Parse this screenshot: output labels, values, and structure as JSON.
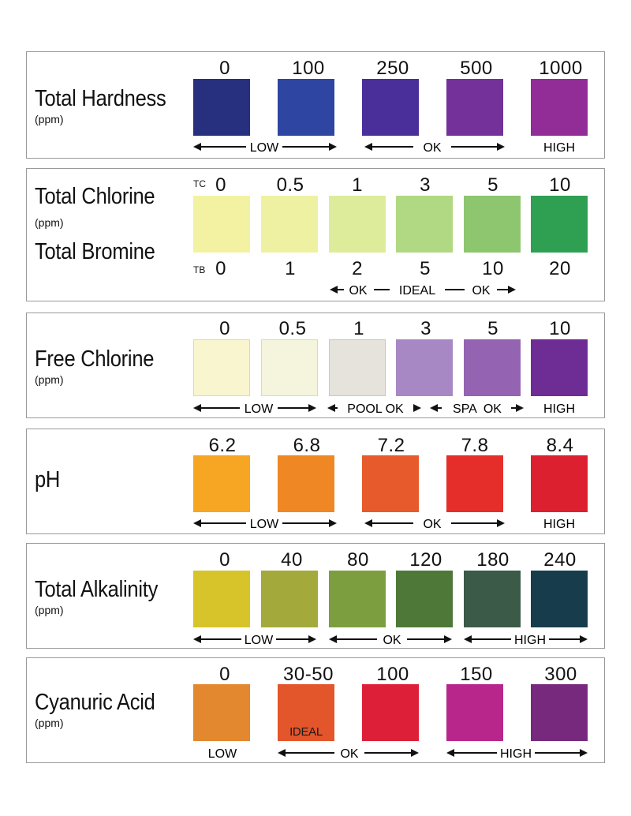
{
  "panels": [
    {
      "id": "total-hardness",
      "title": "Total Hardness",
      "unit": "(ppm)",
      "values": [
        "0",
        "100",
        "250",
        "500",
        "1000"
      ],
      "colors": [
        "#26307f",
        "#2e45a1",
        "#4a2f9a",
        "#74319a",
        "#922c96"
      ],
      "ranges": [
        {
          "label": "LOW",
          "type": "both",
          "from": 0,
          "to": 1
        },
        {
          "label": "OK",
          "type": "both",
          "from": 2,
          "to": 3
        },
        {
          "label": "HIGH",
          "type": "none",
          "from": 4,
          "to": 4
        }
      ]
    },
    {
      "id": "total-chlorine-bromine",
      "title": "Total Chlorine",
      "unit": "(ppm)",
      "title2": "Total Bromine",
      "prefix_top": "TC",
      "prefix_bottom": "TB",
      "values": [
        "0",
        "0.5",
        "1",
        "3",
        "5",
        "10"
      ],
      "values_bottom": [
        "0",
        "1",
        "2",
        "5",
        "10",
        "20"
      ],
      "colors": [
        "#f3f2a2",
        "#eef1a2",
        "#dcec9b",
        "#b1d983",
        "#8dc66f",
        "#2f9f52"
      ],
      "ranges_text": {
        "ok_left": "OK",
        "ideal": "IDEAL",
        "ok_right": "OK"
      }
    },
    {
      "id": "free-chlorine",
      "title": "Free Chlorine",
      "unit": "(ppm)",
      "values": [
        "0",
        "0.5",
        "1",
        "3",
        "5",
        "10"
      ],
      "colors": [
        "#f8f5cf",
        "#f5f4dc",
        "#e5e3dc",
        "#a888c4",
        "#9464b3",
        "#6e2c95"
      ],
      "ranges": [
        {
          "label": "LOW",
          "type": "both",
          "from": 0,
          "to": 1
        },
        {
          "label": "POOL OK",
          "type": "both",
          "from": 2,
          "to": 2
        },
        {
          "label": "SPA  OK",
          "type": "both",
          "from": 3,
          "to": 4
        },
        {
          "label": "HIGH",
          "type": "none",
          "from": 5,
          "to": 5
        }
      ]
    },
    {
      "id": "ph",
      "title": "pH",
      "unit": "",
      "values": [
        "6.2",
        "6.8",
        "7.2",
        "7.8",
        "8.4"
      ],
      "colors": [
        "#f6a623",
        "#ef8725",
        "#e65a2b",
        "#e52d2a",
        "#dc2030"
      ],
      "ranges": [
        {
          "label": "LOW",
          "type": "both",
          "from": 0,
          "to": 1
        },
        {
          "label": "OK",
          "type": "both",
          "from": 2,
          "to": 3
        },
        {
          "label": "HIGH",
          "type": "none",
          "from": 4,
          "to": 4
        }
      ]
    },
    {
      "id": "total-alkalinity",
      "title": "Total Alkalinity",
      "unit": "(ppm)",
      "values": [
        "0",
        "40",
        "80",
        "120",
        "180",
        "240"
      ],
      "colors": [
        "#d7c42a",
        "#a3a93a",
        "#7d9e3e",
        "#4e7838",
        "#3b5a48",
        "#173d4d"
      ],
      "ranges": [
        {
          "label": "LOW",
          "type": "both",
          "from": 0,
          "to": 1
        },
        {
          "label": "OK",
          "type": "both",
          "from": 2,
          "to": 3
        },
        {
          "label": "HIGH",
          "type": "both",
          "from": 4,
          "to": 5
        }
      ]
    },
    {
      "id": "cyanuric-acid",
      "title": "Cyanuric Acid",
      "unit": "(ppm)",
      "values": [
        "0",
        "30-50",
        "100",
        "150",
        "300"
      ],
      "colors": [
        "#e4882f",
        "#e3552a",
        "#de1f38",
        "#b8268c",
        "#77297e"
      ],
      "swatch_label": {
        "index": 1,
        "text": "IDEAL"
      },
      "ranges": [
        {
          "label": "LOW",
          "type": "none",
          "from": 0,
          "to": 0
        },
        {
          "label": "OK",
          "type": "both",
          "from": 1,
          "to": 2
        },
        {
          "label": "HIGH",
          "type": "both",
          "from": 3,
          "to": 4
        }
      ]
    }
  ]
}
